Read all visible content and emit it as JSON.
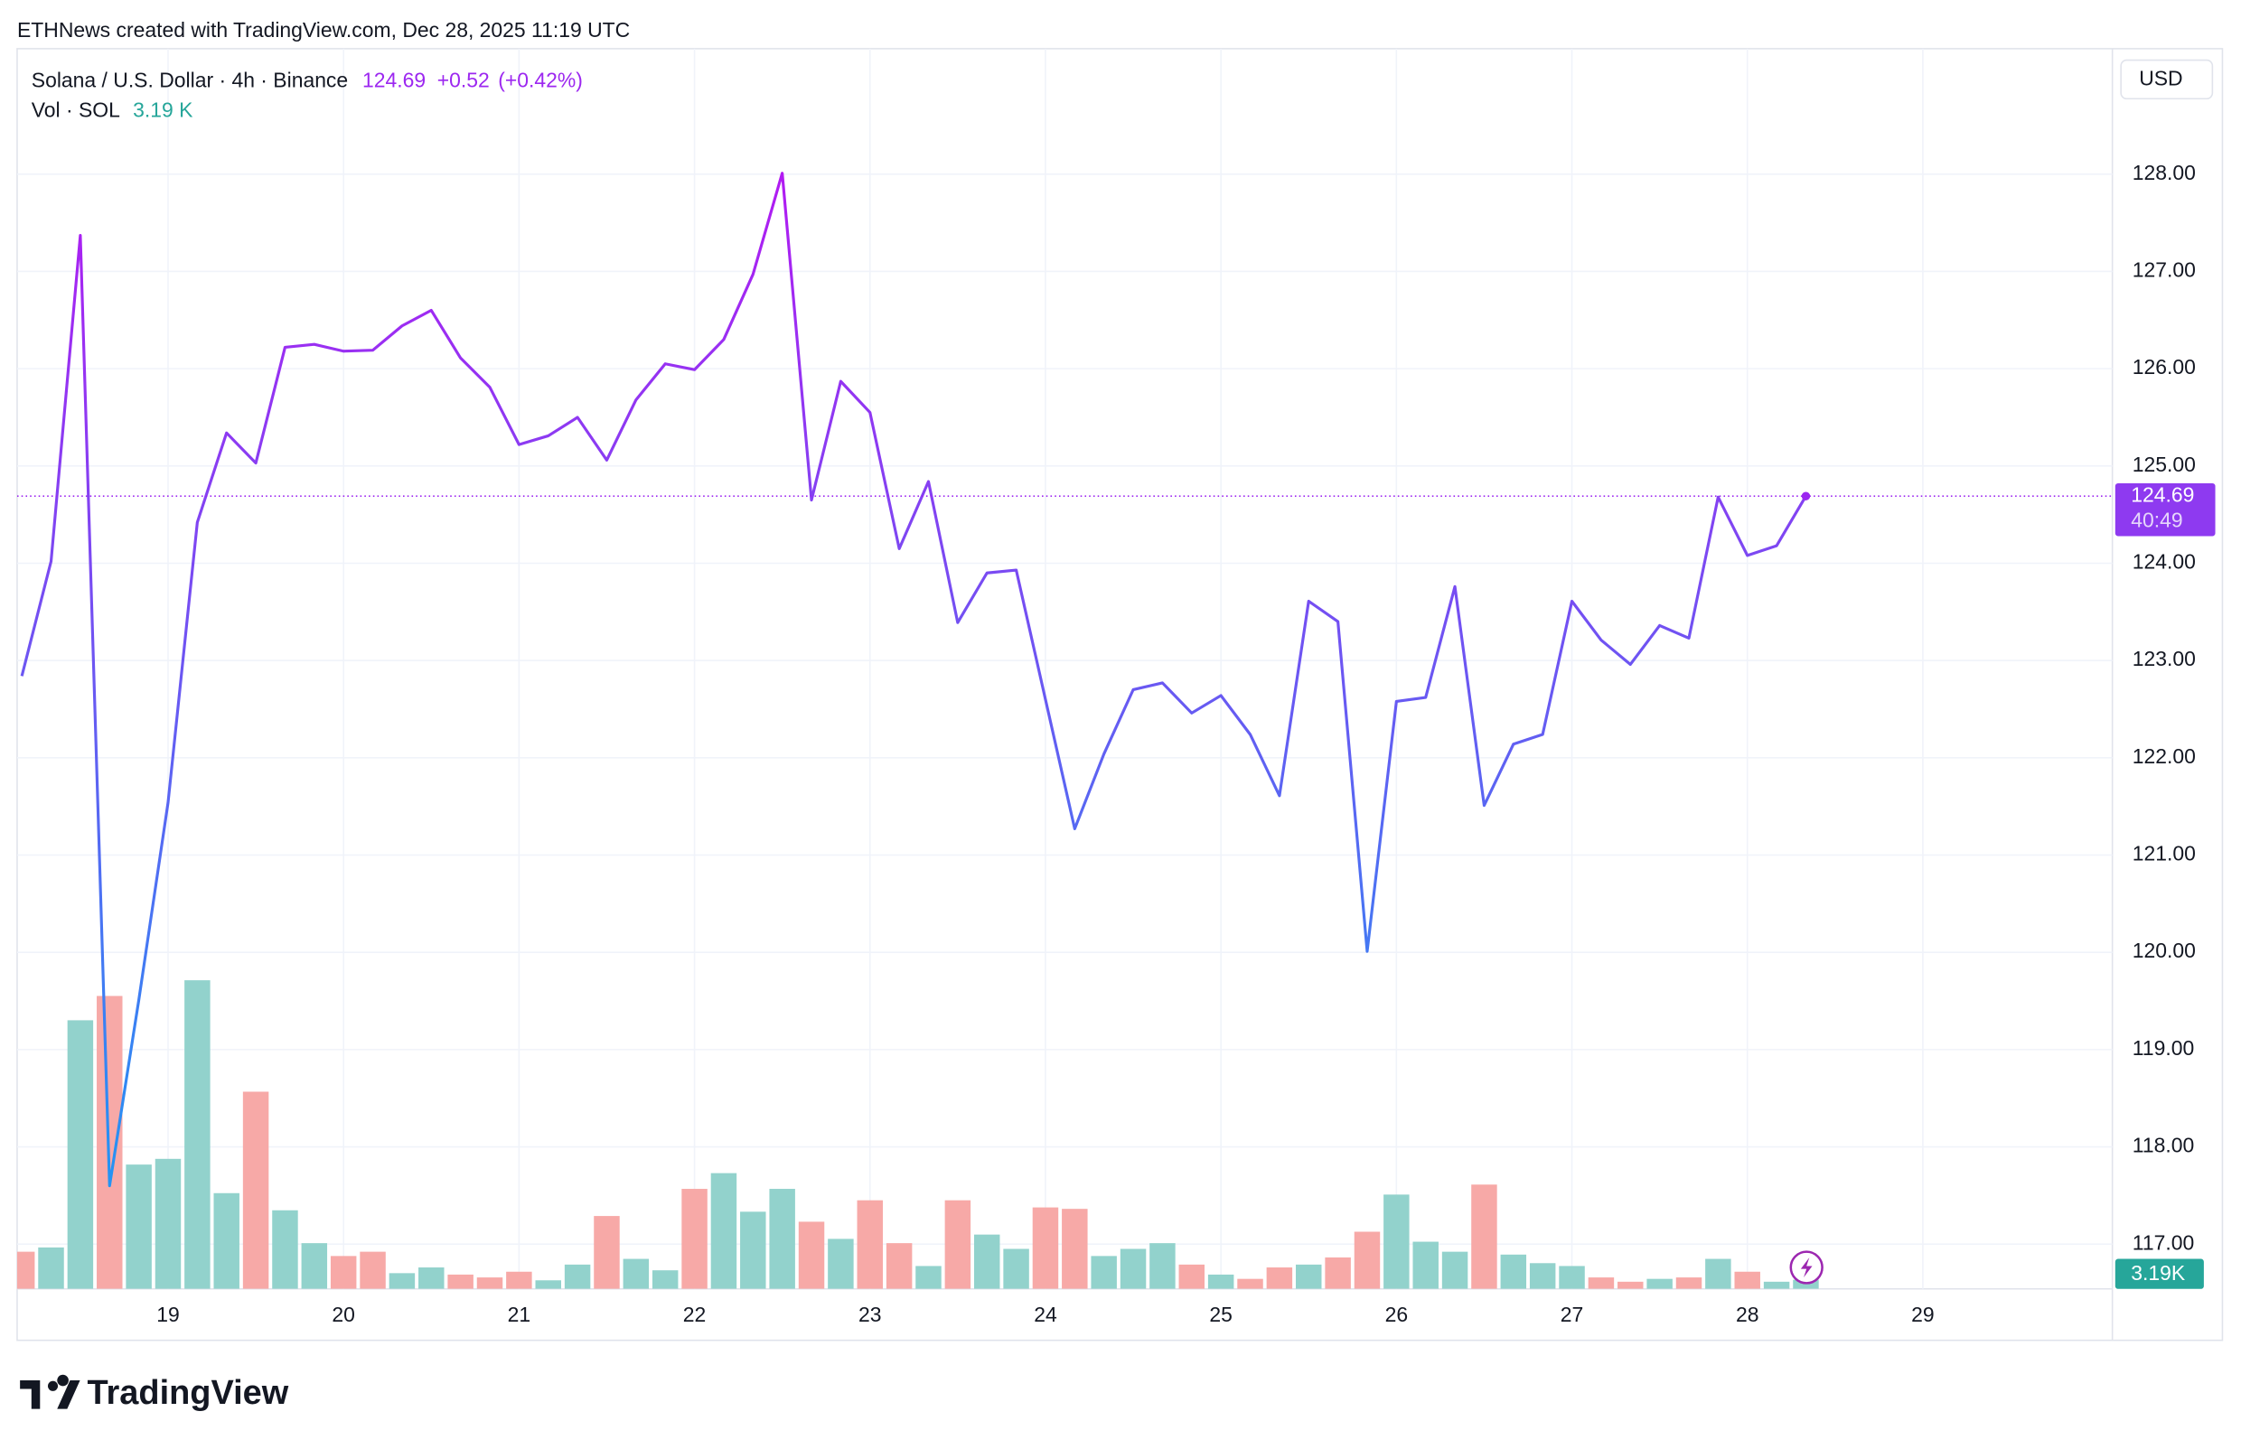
{
  "header": {
    "credit": "ETHNews created with TradingView.com, Dec 28, 2025 11:19 UTC"
  },
  "chart_data": {
    "type": "line",
    "symbol": "Solana / U.S. Dollar · 4h · Binance",
    "last_price": 124.69,
    "change_label": "+0.52",
    "change_pct_label": "(+0.42%)",
    "currency": "USD",
    "countdown": "40:49",
    "vol_title": "Vol · SOL",
    "vol_legend": "3.19 K",
    "vol_tag": "3.19K",
    "x": [
      18.1667,
      18.3333,
      18.5,
      18.6667,
      18.8333,
      19,
      19.1667,
      19.3333,
      19.5,
      19.6667,
      19.8333,
      20,
      20.1667,
      20.3333,
      20.5,
      20.6667,
      20.8333,
      21,
      21.1667,
      21.3333,
      21.5,
      21.6667,
      21.8333,
      22,
      22.1667,
      22.3333,
      22.5,
      22.6667,
      22.8333,
      23,
      23.1667,
      23.3333,
      23.5,
      23.6667,
      23.8333,
      24,
      24.1667,
      24.3333,
      24.5,
      24.6667,
      24.8333,
      25,
      25.1667,
      25.3333,
      25.5,
      25.6667,
      25.8333,
      26,
      26.1667,
      26.3333,
      26.5,
      26.6667,
      26.8333,
      27,
      27.1667,
      27.3333,
      27.5,
      27.6667,
      27.8333,
      28,
      28.1667,
      28.3333
    ],
    "series": [
      {
        "name": "Solana / U.S. Dollar",
        "color_top": "#b21af2",
        "color_bottom": "#2196f3",
        "values": [
          122.84,
          124.02,
          127.37,
          117.6,
          119.51,
          121.54,
          124.42,
          125.34,
          125.03,
          126.22,
          126.25,
          126.18,
          126.19,
          126.44,
          126.6,
          126.11,
          125.81,
          125.22,
          125.31,
          125.5,
          125.06,
          125.68,
          126.05,
          125.99,
          126.3,
          126.97,
          128.01,
          124.65,
          125.87,
          125.55,
          124.15,
          124.84,
          123.39,
          123.9,
          123.93,
          122.6,
          121.27,
          122.04,
          122.7,
          122.77,
          122.46,
          122.64,
          122.24,
          121.61,
          123.61,
          123.4,
          120.01,
          122.58,
          122.62,
          123.76,
          121.51,
          122.14,
          122.24,
          123.61,
          123.21,
          122.96,
          123.36,
          123.23,
          124.68,
          124.08,
          124.18,
          124.69
        ]
      }
    ],
    "volume": [
      13,
      14.5,
      94,
      102.5,
      43.5,
      45.5,
      108,
      33.5,
      69,
      27.5,
      16,
      11.5,
      13,
      5.5,
      7.5,
      5,
      4,
      6,
      3,
      8.5,
      25.5,
      10.5,
      6.5,
      35,
      40.5,
      27,
      35,
      23.5,
      17.5,
      31,
      16,
      8,
      31,
      19,
      14,
      28.5,
      28,
      11.5,
      14,
      16,
      8.5,
      5,
      3.5,
      7.5,
      8.5,
      11,
      20,
      33,
      16.5,
      13,
      36.5,
      12,
      9,
      8,
      4,
      2.5,
      3.5,
      4,
      10.5,
      6,
      2.5,
      3.19
    ],
    "vol_colors": [
      "#f7a9a7",
      "#92d2cc",
      "#92d2cc",
      "#f7a9a7",
      "#92d2cc",
      "#92d2cc",
      "#92d2cc",
      "#92d2cc",
      "#f7a9a7",
      "#92d2cc",
      "#92d2cc",
      "#f7a9a7",
      "#f7a9a7",
      "#92d2cc",
      "#92d2cc",
      "#f7a9a7",
      "#f7a9a7",
      "#f7a9a7",
      "#92d2cc",
      "#92d2cc",
      "#f7a9a7",
      "#92d2cc",
      "#92d2cc",
      "#f7a9a7",
      "#92d2cc",
      "#92d2cc",
      "#92d2cc",
      "#f7a9a7",
      "#92d2cc",
      "#f7a9a7",
      "#f7a9a7",
      "#92d2cc",
      "#f7a9a7",
      "#92d2cc",
      "#92d2cc",
      "#f7a9a7",
      "#f7a9a7",
      "#92d2cc",
      "#92d2cc",
      "#92d2cc",
      "#f7a9a7",
      "#92d2cc",
      "#f7a9a7",
      "#f7a9a7",
      "#92d2cc",
      "#f7a9a7",
      "#f7a9a7",
      "#92d2cc",
      "#92d2cc",
      "#92d2cc",
      "#f7a9a7",
      "#92d2cc",
      "#92d2cc",
      "#92d2cc",
      "#f7a9a7",
      "#f7a9a7",
      "#92d2cc",
      "#f7a9a7",
      "#92d2cc",
      "#f7a9a7",
      "#92d2cc",
      "#92d2cc"
    ],
    "vol_lim": [
      0,
      250
    ],
    "xlim": [
      18.14,
      30.08
    ],
    "xticks": [
      19,
      20,
      21,
      22,
      23,
      24,
      25,
      26,
      27,
      28,
      29
    ],
    "ylim": [
      116.54,
      129.29
    ],
    "yticks": [
      {
        "value": 117,
        "label": "117.00"
      },
      {
        "value": 118,
        "label": "118.00"
      },
      {
        "value": 119,
        "label": "119.00"
      },
      {
        "value": 120,
        "label": "120.00"
      },
      {
        "value": 121,
        "label": "121.00"
      },
      {
        "value": 122,
        "label": "122.00"
      },
      {
        "value": 123,
        "label": "123.00"
      },
      {
        "value": 124,
        "label": "124.00"
      },
      {
        "value": 125,
        "label": "125.00"
      },
      {
        "value": 126,
        "label": "126.00"
      },
      {
        "value": 127,
        "label": "127.00"
      },
      {
        "value": 128,
        "label": "128.00"
      }
    ],
    "grid": true
  },
  "footer": {
    "logo": "TradingView"
  }
}
